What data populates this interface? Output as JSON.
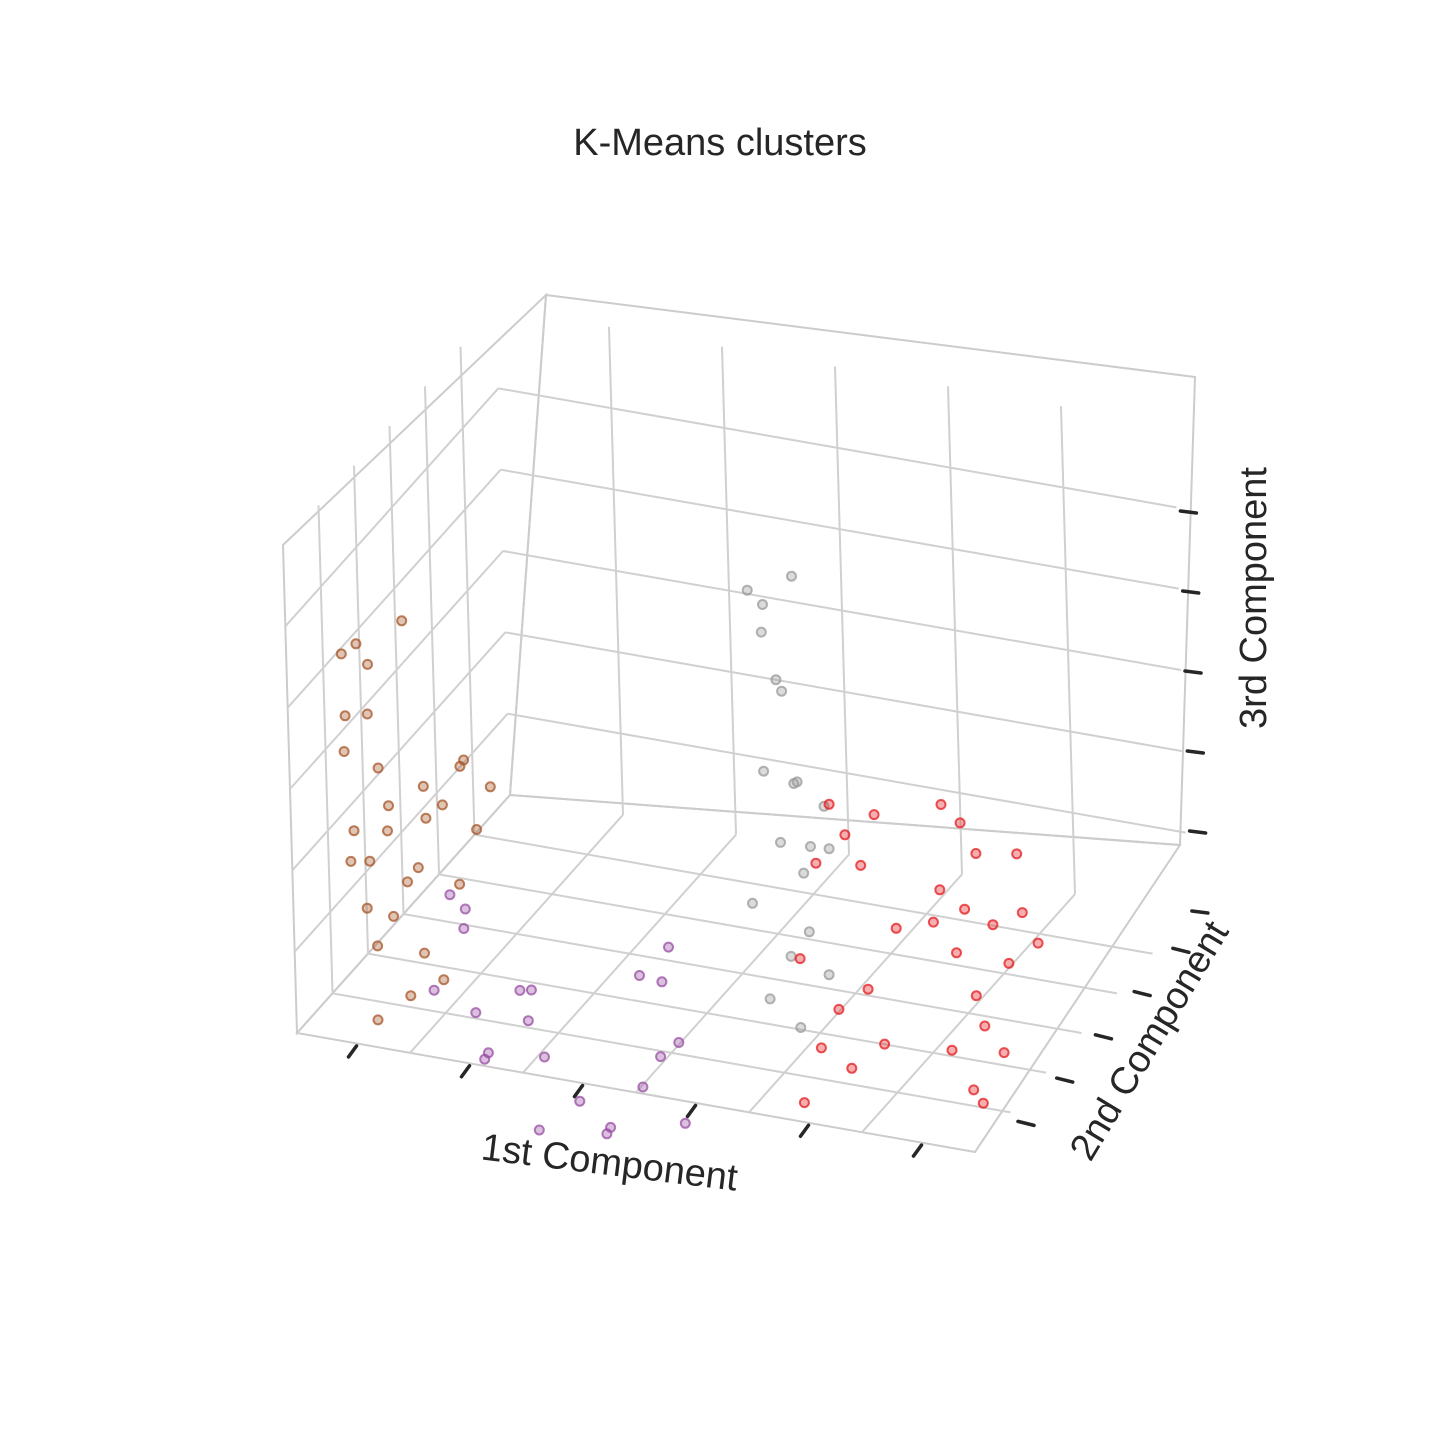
{
  "chart_data": {
    "type": "scatter",
    "projection": "3d",
    "title": "K-Means clusters",
    "xlabel": "1st Component",
    "ylabel": "2nd Component",
    "zlabel": "3rd Component",
    "xlim": [
      0,
      6
    ],
    "ylim": [
      0,
      6
    ],
    "zlim": [
      0,
      6
    ],
    "grid": true,
    "tick_labels_shown": false,
    "marker": "hollow circle, semi-transparent",
    "series": [
      {
        "color": "#a65628",
        "points": [
          [
            0.1,
            1.2,
            4.1
          ],
          [
            0.2,
            1.3,
            4.2
          ],
          [
            0.15,
            1.1,
            3.4
          ],
          [
            0.25,
            1.4,
            3.3
          ],
          [
            0.1,
            1.2,
            2.9
          ],
          [
            0.3,
            1.5,
            2.6
          ],
          [
            0.2,
            1.1,
            2.0
          ],
          [
            0.35,
            1.6,
            2.1
          ],
          [
            0.1,
            1.3,
            1.5
          ],
          [
            0.3,
            1.2,
            1.6
          ],
          [
            0.2,
            1.4,
            0.9
          ],
          [
            0.25,
            1.5,
            0.4
          ],
          [
            0.6,
            1.8,
            2.3
          ],
          [
            0.7,
            2.0,
            2.0
          ],
          [
            0.8,
            2.2,
            2.4
          ],
          [
            0.5,
            1.6,
            1.2
          ],
          [
            0.9,
            2.3,
            1.6
          ],
          [
            0.4,
            1.5,
            0.8
          ],
          [
            0.6,
            1.7,
            0.3
          ],
          [
            0.7,
            1.9,
            -0.1
          ],
          [
            0.3,
            1.3,
            -0.4
          ],
          [
            0.5,
            1.6,
            -0.2
          ],
          [
            0.8,
            2.1,
            1.0
          ],
          [
            0.9,
            2.0,
            2.6
          ],
          [
            0.4,
            1.4,
            1.9
          ],
          [
            0.6,
            1.6,
            1.4
          ],
          [
            1.0,
            2.4,
            2.1
          ],
          [
            0.2,
            1.6,
            3.8
          ],
          [
            0.45,
            1.8,
            4.3
          ],
          [
            0.55,
            2.0,
            1.8
          ]
        ]
      },
      {
        "color": "#984ea3",
        "points": [
          [
            1.2,
            0.6,
            1.7
          ],
          [
            1.3,
            0.7,
            1.5
          ],
          [
            1.25,
            0.8,
            1.2
          ],
          [
            1.1,
            0.4,
            0.6
          ],
          [
            1.4,
            0.6,
            0.3
          ],
          [
            1.6,
            0.3,
            0.0
          ],
          [
            1.5,
            0.5,
            -0.2
          ],
          [
            1.8,
            0.8,
            0.2
          ],
          [
            1.7,
            0.9,
            0.5
          ],
          [
            2.0,
            0.6,
            -0.1
          ],
          [
            2.4,
            0.3,
            -0.4
          ],
          [
            2.7,
            0.2,
            -0.6
          ],
          [
            2.9,
            0.5,
            -0.2
          ],
          [
            2.6,
            0.4,
            -0.8
          ],
          [
            3.0,
            0.7,
            0.1
          ],
          [
            3.3,
            0.4,
            -0.5
          ],
          [
            3.1,
            0.9,
            0.2
          ],
          [
            2.8,
            0.8,
            1.0
          ],
          [
            3.0,
            1.0,
            1.3
          ],
          [
            2.9,
            1.1,
            0.8
          ],
          [
            2.0,
            0.4,
            -0.9
          ],
          [
            1.9,
            0.6,
            0.7
          ]
        ]
      },
      {
        "color": "#999999",
        "points": [
          [
            3.4,
            2.2,
            5.2
          ],
          [
            3.5,
            2.3,
            5.0
          ],
          [
            3.7,
            2.5,
            5.3
          ],
          [
            3.45,
            2.4,
            4.6
          ],
          [
            3.6,
            2.3,
            4.1
          ],
          [
            3.55,
            2.6,
            3.8
          ],
          [
            3.5,
            2.2,
            3.0
          ],
          [
            3.7,
            2.4,
            2.8
          ],
          [
            3.6,
            2.3,
            2.1
          ],
          [
            3.8,
            2.5,
            2.0
          ],
          [
            3.7,
            2.6,
            1.6
          ],
          [
            3.9,
            2.7,
            1.9
          ],
          [
            3.4,
            2.1,
            1.4
          ],
          [
            3.8,
            2.4,
            1.0
          ],
          [
            3.6,
            2.5,
            0.6
          ],
          [
            3.5,
            2.2,
            0.2
          ],
          [
            3.9,
            2.6,
            0.4
          ],
          [
            3.7,
            2.4,
            -0.2
          ],
          [
            3.6,
            2.8,
            2.6
          ],
          [
            3.8,
            2.9,
            2.3
          ]
        ]
      },
      {
        "color": "#e41a1c",
        "points": [
          [
            4.4,
            1.2,
            3.3
          ],
          [
            4.5,
            1.3,
            2.9
          ],
          [
            4.3,
            1.1,
            2.6
          ],
          [
            4.6,
            1.4,
            2.5
          ],
          [
            4.7,
            1.5,
            3.1
          ],
          [
            4.2,
            0.9,
            1.5
          ],
          [
            4.5,
            1.0,
            0.9
          ],
          [
            4.7,
            1.2,
            1.1
          ],
          [
            4.4,
            0.8,
            0.5
          ],
          [
            4.6,
            1.0,
            0.2
          ],
          [
            4.8,
            1.3,
            0.4
          ],
          [
            4.3,
            0.6,
            -0.1
          ],
          [
            5.2,
            1.8,
            3.2
          ],
          [
            5.3,
            2.0,
            2.9
          ],
          [
            5.4,
            2.1,
            2.5
          ],
          [
            5.2,
            1.7,
            2.2
          ],
          [
            5.35,
            1.9,
            1.9
          ],
          [
            5.5,
            2.2,
            1.6
          ],
          [
            5.3,
            1.8,
            1.4
          ],
          [
            5.6,
            2.3,
            1.1
          ],
          [
            5.4,
            2.0,
            0.8
          ],
          [
            5.5,
            1.9,
            0.5
          ],
          [
            5.3,
            1.6,
            0.3
          ],
          [
            5.6,
            2.1,
            0.1
          ],
          [
            5.45,
            1.7,
            -0.2
          ],
          [
            5.5,
            1.8,
            -0.4
          ],
          [
            5.7,
            2.4,
            1.7
          ],
          [
            5.8,
            2.5,
            1.3
          ],
          [
            5.2,
            1.5,
            1.9
          ],
          [
            5.6,
            2.6,
            2.3
          ],
          [
            4.9,
            1.4,
            1.8
          ]
        ]
      }
    ]
  }
}
